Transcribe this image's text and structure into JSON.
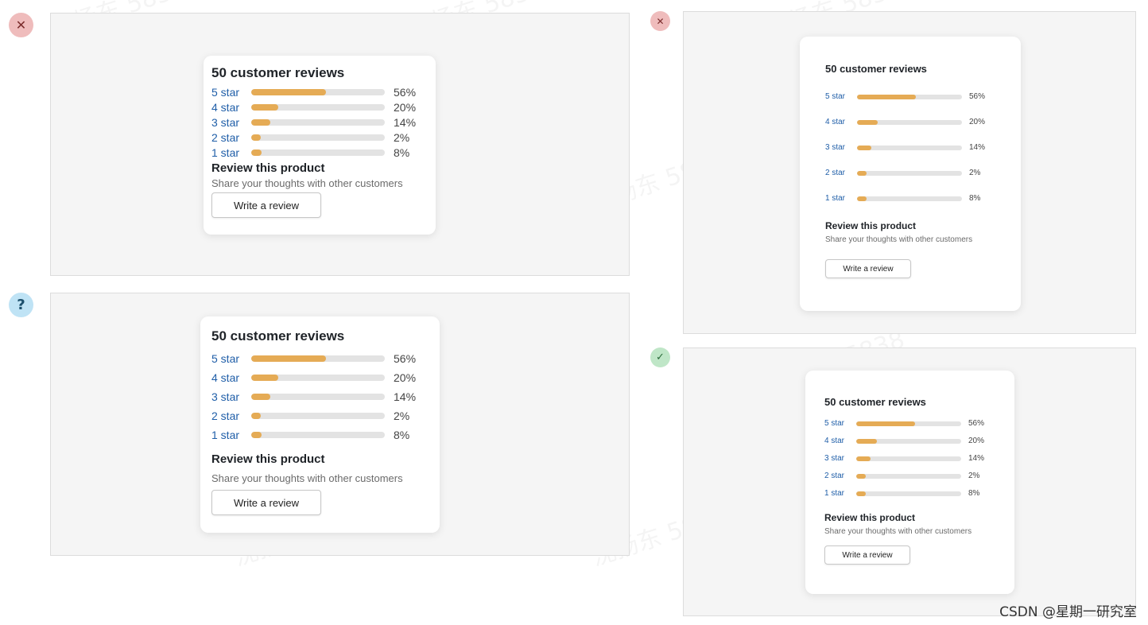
{
  "colors": {
    "bar_fill": "#e5ab55",
    "bar_track": "#e3e3e3",
    "star_link": "#1f5ea8",
    "bad": "#efbcbc",
    "unsure": "#bfe3f5",
    "good": "#bfe6c7"
  },
  "watermark_text": "沈扬东 5838",
  "credit": "CSDN @星期一研究室",
  "examples": [
    {
      "status": "bad",
      "status_symbol": "✕",
      "status_icon": "close-icon",
      "card": {
        "title": "50 customer reviews",
        "ratings": [
          {
            "label": "5 star",
            "percent": 56,
            "percent_text": "56%"
          },
          {
            "label": "4 star",
            "percent": 20,
            "percent_text": "20%"
          },
          {
            "label": "3 star",
            "percent": 14,
            "percent_text": "14%"
          },
          {
            "label": "2 star",
            "percent": 2,
            "percent_text": "2%"
          },
          {
            "label": "1 star",
            "percent": 8,
            "percent_text": "8%"
          }
        ],
        "review_title": "Review this product",
        "review_subtitle": "Share your thoughts with other customers",
        "button_label": "Write a review"
      }
    },
    {
      "status": "unsure",
      "status_symbol": "?",
      "status_icon": "question-icon",
      "card": {
        "title": "50 customer reviews",
        "ratings": [
          {
            "label": "5 star",
            "percent": 56,
            "percent_text": "56%"
          },
          {
            "label": "4 star",
            "percent": 20,
            "percent_text": "20%"
          },
          {
            "label": "3 star",
            "percent": 14,
            "percent_text": "14%"
          },
          {
            "label": "2 star",
            "percent": 2,
            "percent_text": "2%"
          },
          {
            "label": "1 star",
            "percent": 8,
            "percent_text": "8%"
          }
        ],
        "review_title": "Review this product",
        "review_subtitle": "Share your thoughts with other customers",
        "button_label": "Write a review"
      }
    },
    {
      "status": "bad",
      "status_symbol": "✕",
      "status_icon": "close-icon",
      "card": {
        "title": "50 customer reviews",
        "ratings": [
          {
            "label": "5 star",
            "percent": 56,
            "percent_text": "56%"
          },
          {
            "label": "4 star",
            "percent": 20,
            "percent_text": "20%"
          },
          {
            "label": "3 star",
            "percent": 14,
            "percent_text": "14%"
          },
          {
            "label": "2 star",
            "percent": 2,
            "percent_text": "2%"
          },
          {
            "label": "1 star",
            "percent": 8,
            "percent_text": "8%"
          }
        ],
        "review_title": "Review this product",
        "review_subtitle": "Share your thoughts with other customers",
        "button_label": "Write a review"
      }
    },
    {
      "status": "good",
      "status_symbol": "✓",
      "status_icon": "check-icon",
      "card": {
        "title": "50 customer reviews",
        "ratings": [
          {
            "label": "5 star",
            "percent": 56,
            "percent_text": "56%"
          },
          {
            "label": "4 star",
            "percent": 20,
            "percent_text": "20%"
          },
          {
            "label": "3 star",
            "percent": 14,
            "percent_text": "14%"
          },
          {
            "label": "2 star",
            "percent": 2,
            "percent_text": "2%"
          },
          {
            "label": "1 star",
            "percent": 8,
            "percent_text": "8%"
          }
        ],
        "review_title": "Review this product",
        "review_subtitle": "Share your thoughts with other customers",
        "button_label": "Write a review"
      }
    }
  ]
}
